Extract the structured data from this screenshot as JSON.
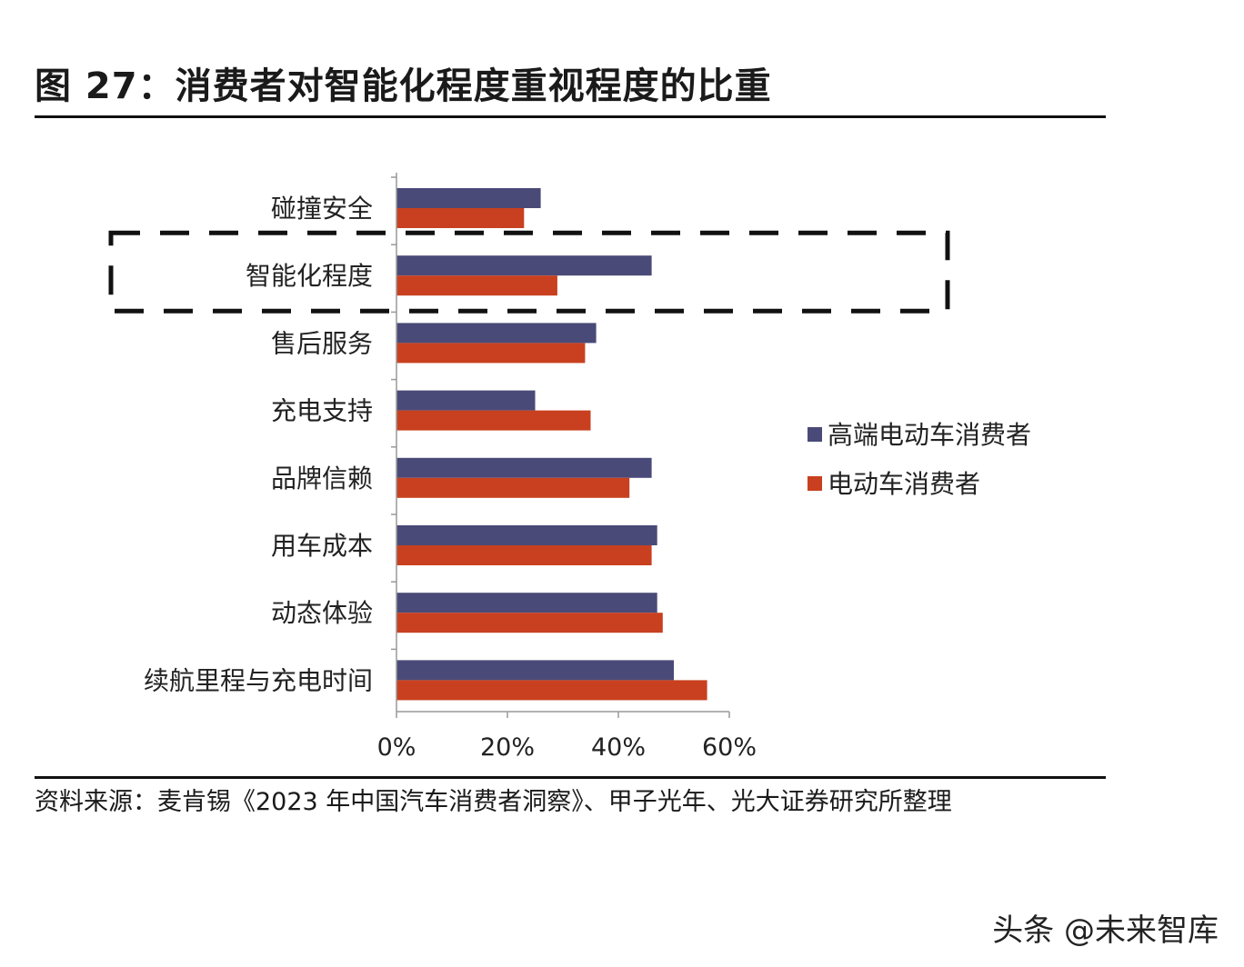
{
  "title": "图 27：消费者对智能化程度重视程度的比重",
  "source": "资料来源：麦肯锡《2023 年中国汽车消费者洞察》、甲子光年、光大证券研究所整理",
  "watermark": "头条 @未来智库",
  "colors": {
    "series_1": "#4a4a78",
    "series_2": "#c8401f",
    "highlight": "#111111"
  },
  "chart_data": {
    "type": "bar",
    "orientation": "horizontal",
    "categories": [
      "碰撞安全",
      "智能化程度",
      "售后服务",
      "充电支持",
      "品牌信赖",
      "用车成本",
      "动态体验",
      "续航里程与充电时间"
    ],
    "series": [
      {
        "name": "高端电动车消费者",
        "values": [
          26,
          46,
          36,
          25,
          46,
          47,
          47,
          50
        ]
      },
      {
        "name": "电动车消费者",
        "values": [
          23,
          29,
          34,
          35,
          42,
          46,
          48,
          56
        ]
      }
    ],
    "x_ticks": [
      "0%",
      "20%",
      "40%",
      "60%"
    ],
    "xlim": [
      0,
      60
    ],
    "legend_position": "right",
    "grid": false,
    "highlighted_category": "智能化程度"
  }
}
